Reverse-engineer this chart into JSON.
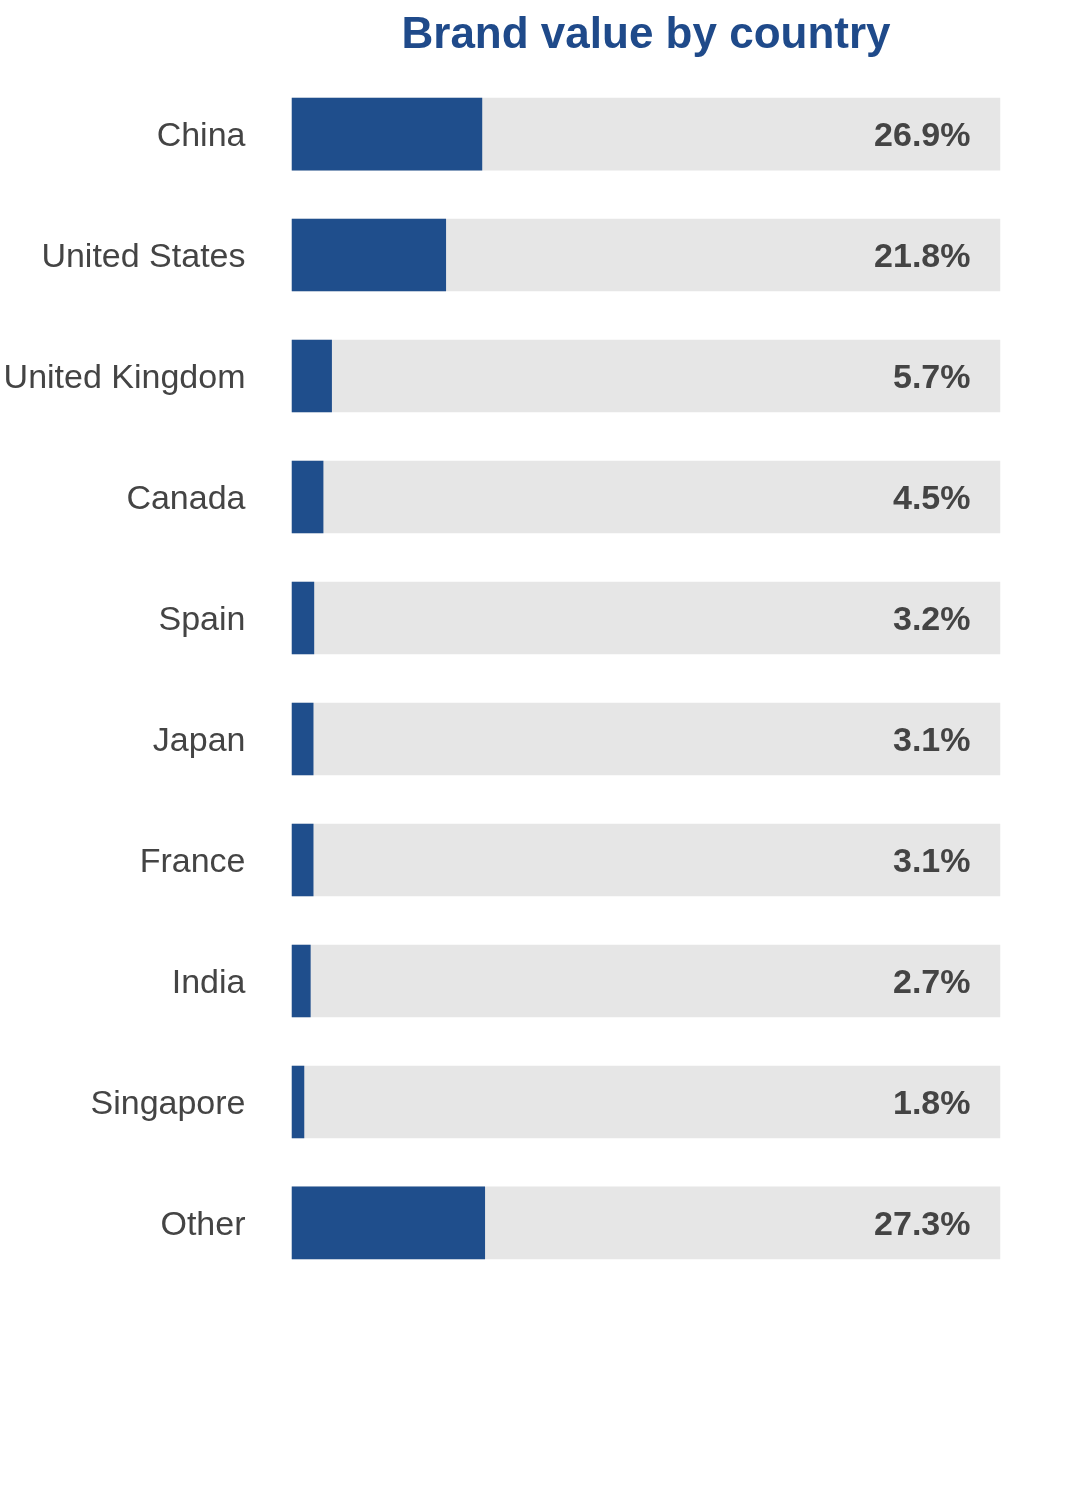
{
  "chart_data": {
    "type": "bar",
    "orientation": "horizontal",
    "title": "Brand value by country",
    "categories": [
      "China",
      "United States",
      "United Kingdom",
      "Canada",
      "Spain",
      "Japan",
      "France",
      "India",
      "Singapore",
      "Other"
    ],
    "values": [
      26.9,
      21.8,
      5.7,
      4.5,
      3.2,
      3.1,
      3.1,
      2.7,
      1.8,
      27.3
    ],
    "value_labels": [
      "26.9%",
      "21.8%",
      "5.7%",
      "4.5%",
      "3.2%",
      "3.1%",
      "3.1%",
      "2.7%",
      "1.8%",
      "27.3%"
    ],
    "color": "#1f4e8c",
    "xlim": [
      0,
      100
    ],
    "tick_labels": "y"
  }
}
